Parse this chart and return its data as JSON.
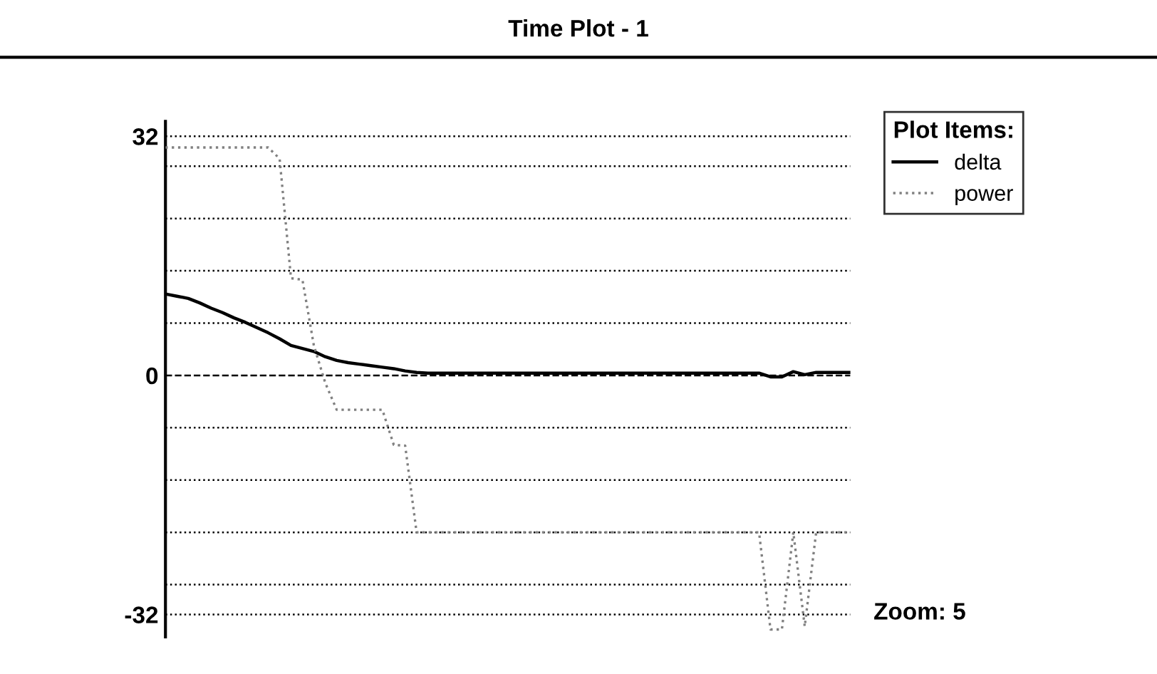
{
  "chart_data": {
    "type": "line",
    "title": "Time Plot - 1",
    "legend_title": "Plot Items:",
    "legend": "right",
    "grid": "y",
    "categories": [
      null,
      null,
      null,
      null,
      null,
      null,
      null,
      null,
      null,
      null,
      null,
      null,
      null,
      null,
      null,
      null,
      null,
      null,
      null,
      null,
      null,
      null,
      null,
      null,
      null,
      null,
      null,
      null,
      null,
      null,
      null,
      null,
      null,
      null,
      null,
      null,
      null,
      null,
      null,
      null,
      null,
      null,
      null,
      null,
      null,
      null,
      null,
      null,
      null,
      null,
      null,
      null,
      null,
      null,
      null,
      null,
      null,
      null,
      null,
      null,
      null
    ],
    "ylim": [
      -35,
      34
    ],
    "yticks": [
      -32,
      {
        "value": -28,
        "label": null
      },
      {
        "value": -21,
        "label": null
      },
      {
        "value": -14,
        "label": null
      },
      {
        "value": -7,
        "label": null
      },
      0,
      {
        "value": 7,
        "label": null
      },
      {
        "value": 14,
        "label": null
      },
      {
        "value": 21,
        "label": null
      },
      {
        "value": 28,
        "label": null
      },
      32
    ],
    "annotations": [
      "Zoom: 5"
    ],
    "series": [
      {
        "name": "delta",
        "color": "#000000",
        "line_style": "solid",
        "values": [
          10.9,
          10.6,
          10.3,
          9.7,
          9.0,
          8.4,
          7.7,
          7.1,
          6.4,
          5.7,
          4.9,
          4.0,
          3.6,
          3.2,
          2.5,
          2.0,
          1.7,
          1.5,
          1.3,
          1.1,
          0.9,
          0.6,
          0.4,
          0.3,
          0.3,
          0.3,
          0.3,
          0.3,
          0.3,
          0.3,
          0.3,
          0.3,
          0.3,
          0.3,
          0.3,
          0.3,
          0.3,
          0.3,
          0.3,
          0.3,
          0.3,
          0.3,
          0.3,
          0.3,
          0.3,
          0.3,
          0.3,
          0.3,
          0.3,
          0.3,
          0.3,
          0.3,
          0.3,
          -0.2,
          -0.2,
          0.5,
          0.1,
          0.4,
          0.4,
          0.4,
          0.4
        ]
      },
      {
        "name": "power",
        "color": "#808080",
        "line_style": "dotted",
        "values": [
          30.5,
          30.5,
          30.5,
          30.5,
          30.5,
          30.5,
          30.5,
          30.5,
          30.5,
          30.5,
          29,
          13,
          12.8,
          4,
          -1,
          -4.6,
          -4.6,
          -4.6,
          -4.6,
          -4.6,
          -9.3,
          -9.4,
          -21,
          -21,
          -21,
          -21,
          -21,
          -21,
          -21,
          -21,
          -21,
          -21,
          -21,
          -21,
          -21,
          -21,
          -21,
          -21,
          -21,
          -21,
          -21,
          -21,
          -21,
          -21,
          -21,
          -21,
          -21,
          -21,
          -21,
          -21,
          -21,
          -21,
          -21,
          -34,
          -34,
          -21,
          -33.6,
          -21,
          -21,
          -21,
          -21
        ]
      }
    ]
  }
}
